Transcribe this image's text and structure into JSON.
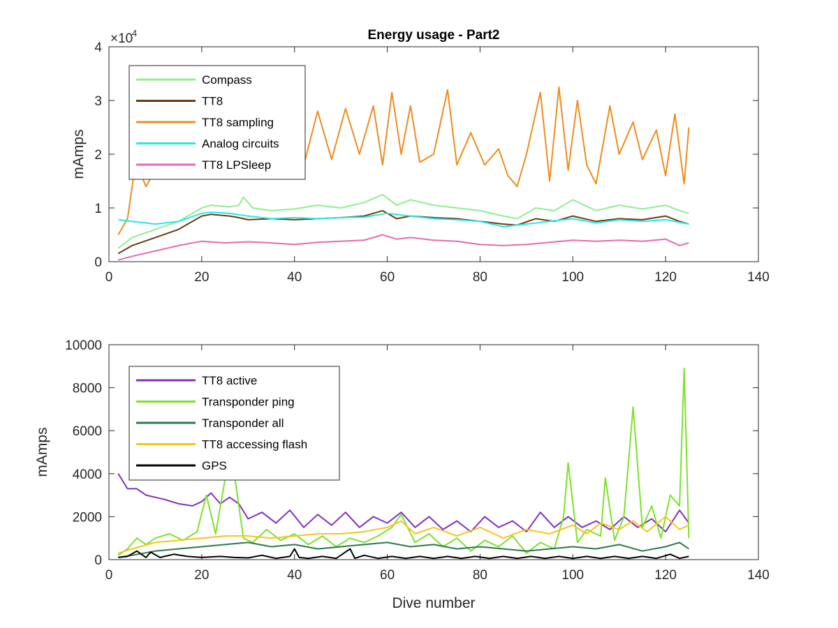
{
  "figure": {
    "title": "Energy usage - Part2"
  },
  "chart_data": [
    {
      "type": "line",
      "title": "Energy usage - Part2",
      "xlabel": "",
      "ylabel": "mAmps",
      "exponent_label": "×10",
      "exponent_power": "4",
      "xlim": [
        0,
        140
      ],
      "ylim": [
        0,
        40000
      ],
      "xticks": [
        0,
        20,
        40,
        60,
        80,
        100,
        120,
        140
      ],
      "yticks": [
        0,
        10000,
        20000,
        30000,
        40000
      ],
      "ytick_labels": [
        "0",
        "1",
        "2",
        "3",
        "4"
      ],
      "legend_placement": "top-left",
      "series": [
        {
          "name": "Compass",
          "color": "#8fee8f",
          "x": [
            2,
            5,
            10,
            15,
            20,
            22,
            26,
            28,
            29,
            31,
            35,
            40,
            45,
            50,
            55,
            59,
            62,
            65,
            70,
            75,
            80,
            85,
            88,
            92,
            96,
            100,
            105,
            110,
            115,
            120,
            123,
            125
          ],
          "y": [
            2500,
            4500,
            6000,
            7500,
            10000,
            10500,
            10200,
            10500,
            12000,
            10000,
            9500,
            9800,
            10500,
            10000,
            11000,
            12500,
            10500,
            11500,
            10500,
            10000,
            9500,
            8500,
            8000,
            10000,
            9500,
            11500,
            9500,
            10500,
            9800,
            10500,
            9500,
            9000
          ]
        },
        {
          "name": "TT8",
          "color": "#6b3a14",
          "x": [
            2,
            5,
            10,
            15,
            20,
            22,
            26,
            28,
            30,
            35,
            40,
            45,
            50,
            55,
            59,
            62,
            65,
            70,
            75,
            80,
            85,
            88,
            92,
            96,
            100,
            105,
            110,
            115,
            120,
            123,
            125
          ],
          "y": [
            1500,
            3000,
            4500,
            6000,
            8500,
            8800,
            8500,
            8200,
            7800,
            8000,
            7800,
            8000,
            8200,
            8500,
            9500,
            8000,
            8500,
            8200,
            8000,
            7500,
            7000,
            6800,
            8000,
            7500,
            8500,
            7500,
            8000,
            7800,
            8500,
            7500,
            7000
          ]
        },
        {
          "name": "TT8 sampling",
          "color": "#ee8c1c",
          "x": [
            2,
            4,
            6,
            7,
            8,
            10,
            12,
            15,
            18,
            21,
            24,
            27,
            30,
            33,
            36,
            39,
            42,
            45,
            48,
            51,
            54,
            57,
            59,
            61,
            63,
            65,
            67,
            70,
            73,
            75,
            78,
            81,
            84,
            86,
            88,
            90,
            93,
            95,
            97,
            99,
            101,
            103,
            105,
            108,
            110,
            113,
            115,
            118,
            120,
            122,
            124,
            125
          ],
          "y": [
            5000,
            8000,
            20000,
            16000,
            14000,
            17000,
            19000,
            23000,
            20000,
            26000,
            21000,
            28000,
            22000,
            26500,
            20000,
            27000,
            18000,
            28000,
            19000,
            28500,
            20000,
            29000,
            18000,
            31500,
            20000,
            29000,
            18500,
            20000,
            32000,
            18000,
            24000,
            18000,
            21000,
            16000,
            14000,
            20000,
            31500,
            15000,
            32500,
            17000,
            30000,
            18000,
            14500,
            29000,
            20000,
            26000,
            19000,
            24500,
            16000,
            27500,
            14500,
            25000
          ]
        },
        {
          "name": "Analog circuits",
          "color": "#26e8e8",
          "x": [
            2,
            5,
            10,
            15,
            20,
            22,
            26,
            30,
            35,
            40,
            45,
            50,
            55,
            60,
            65,
            70,
            75,
            80,
            85,
            90,
            95,
            100,
            105,
            110,
            115,
            120,
            125
          ],
          "y": [
            7800,
            7500,
            7000,
            7500,
            9000,
            9200,
            9000,
            8500,
            8000,
            8200,
            8000,
            8200,
            8300,
            9000,
            8500,
            8000,
            7800,
            7500,
            6500,
            7000,
            7500,
            8000,
            7200,
            7800,
            7500,
            7800,
            7000
          ]
        },
        {
          "name": "TT8 LPSleep",
          "color": "#e66aad",
          "x": [
            2,
            5,
            10,
            15,
            20,
            25,
            30,
            35,
            40,
            45,
            50,
            55,
            59,
            62,
            65,
            70,
            75,
            80,
            85,
            90,
            95,
            100,
            105,
            110,
            115,
            120,
            123,
            125
          ],
          "y": [
            300,
            1000,
            2000,
            3000,
            3800,
            3500,
            3700,
            3500,
            3200,
            3600,
            3800,
            4000,
            5000,
            4200,
            4500,
            4000,
            3800,
            3200,
            3000,
            3200,
            3600,
            4000,
            3800,
            4000,
            3800,
            4200,
            3000,
            3500
          ]
        }
      ]
    },
    {
      "type": "line",
      "title": "",
      "xlabel": "Dive number",
      "ylabel": "mAmps",
      "xlim": [
        0,
        140
      ],
      "ylim": [
        0,
        10000
      ],
      "xticks": [
        0,
        20,
        40,
        60,
        80,
        100,
        120,
        140
      ],
      "yticks": [
        0,
        2000,
        4000,
        6000,
        8000,
        10000
      ],
      "ytick_labels": [
        "0",
        "2000",
        "4000",
        "6000",
        "8000",
        "10000"
      ],
      "legend_placement": "top-left",
      "series": [
        {
          "name": "TT8 active",
          "color": "#8030c0",
          "x": [
            2,
            4,
            6,
            8,
            10,
            12,
            15,
            18,
            20,
            22,
            24,
            26,
            28,
            30,
            33,
            36,
            39,
            42,
            45,
            48,
            51,
            54,
            57,
            60,
            63,
            66,
            69,
            72,
            75,
            78,
            81,
            84,
            87,
            90,
            93,
            96,
            99,
            102,
            105,
            108,
            111,
            114,
            117,
            120,
            123,
            125
          ],
          "y": [
            4000,
            3300,
            3300,
            3000,
            2900,
            2800,
            2600,
            2500,
            2700,
            3100,
            2600,
            2900,
            2600,
            1900,
            2200,
            1700,
            2300,
            1500,
            2100,
            1600,
            2200,
            1500,
            2000,
            1700,
            2200,
            1500,
            2000,
            1400,
            1800,
            1300,
            2000,
            1500,
            1800,
            1300,
            2200,
            1500,
            2000,
            1500,
            1800,
            1400,
            2000,
            1500,
            1900,
            1300,
            2300,
            1700
          ]
        },
        {
          "name": "Transponder ping",
          "color": "#7ce22a",
          "x": [
            2,
            4,
            6,
            8,
            10,
            13,
            16,
            19,
            21,
            23,
            25,
            27,
            29,
            31,
            34,
            37,
            40,
            43,
            46,
            49,
            52,
            55,
            58,
            61,
            63,
            66,
            69,
            72,
            75,
            78,
            81,
            84,
            87,
            90,
            93,
            96,
            98,
            99,
            101,
            103,
            106,
            107,
            109,
            111,
            113,
            115,
            117,
            119,
            121,
            123,
            124,
            125
          ],
          "y": [
            200,
            500,
            1000,
            700,
            1000,
            1200,
            900,
            1300,
            3000,
            1200,
            3700,
            4000,
            1000,
            800,
            1400,
            900,
            1200,
            700,
            1100,
            600,
            1000,
            800,
            1100,
            1500,
            2100,
            800,
            1200,
            600,
            1000,
            400,
            900,
            600,
            1100,
            300,
            800,
            500,
            2000,
            4500,
            800,
            1400,
            1100,
            3800,
            900,
            2000,
            7100,
            1500,
            2500,
            1000,
            3000,
            2500,
            8900,
            1000
          ]
        },
        {
          "name": "Transponder all",
          "color": "#2b7a4a",
          "x": [
            2,
            5,
            10,
            15,
            20,
            25,
            30,
            35,
            40,
            45,
            50,
            55,
            60,
            65,
            70,
            75,
            80,
            85,
            90,
            95,
            100,
            105,
            110,
            115,
            120,
            123,
            125
          ],
          "y": [
            100,
            200,
            400,
            500,
            600,
            700,
            800,
            600,
            700,
            500,
            600,
            700,
            800,
            600,
            700,
            500,
            600,
            500,
            400,
            500,
            600,
            500,
            700,
            400,
            600,
            800,
            500
          ]
        },
        {
          "name": "TT8 accessing flash",
          "color": "#f5c518",
          "x": [
            2,
            5,
            10,
            15,
            20,
            25,
            30,
            35,
            40,
            45,
            50,
            55,
            60,
            63,
            66,
            70,
            75,
            80,
            85,
            90,
            95,
            100,
            103,
            106,
            110,
            113,
            116,
            120,
            123,
            125
          ],
          "y": [
            300,
            500,
            800,
            900,
            1000,
            1100,
            1100,
            1000,
            1100,
            1200,
            1200,
            1300,
            1500,
            1800,
            1200,
            1500,
            1100,
            1500,
            1000,
            1400,
            1200,
            1600,
            1200,
            1700,
            1400,
            1800,
            1300,
            2000,
            1400,
            1600
          ]
        },
        {
          "name": "GPS",
          "color": "#000000",
          "x": [
            2,
            4,
            6,
            8,
            9,
            11,
            14,
            17,
            20,
            24,
            27,
            30,
            33,
            36,
            39,
            40,
            41,
            43,
            46,
            49,
            52,
            53,
            55,
            58,
            61,
            64,
            67,
            70,
            73,
            76,
            79,
            82,
            85,
            88,
            91,
            94,
            97,
            100,
            103,
            106,
            109,
            112,
            115,
            118,
            121,
            123,
            125
          ],
          "y": [
            100,
            150,
            400,
            100,
            350,
            100,
            250,
            150,
            100,
            150,
            100,
            80,
            200,
            60,
            150,
            500,
            100,
            60,
            150,
            60,
            500,
            60,
            200,
            60,
            150,
            60,
            150,
            60,
            150,
            60,
            150,
            60,
            150,
            60,
            150,
            60,
            150,
            60,
            150,
            60,
            150,
            60,
            150,
            60,
            250,
            60,
            150
          ]
        }
      ]
    }
  ]
}
